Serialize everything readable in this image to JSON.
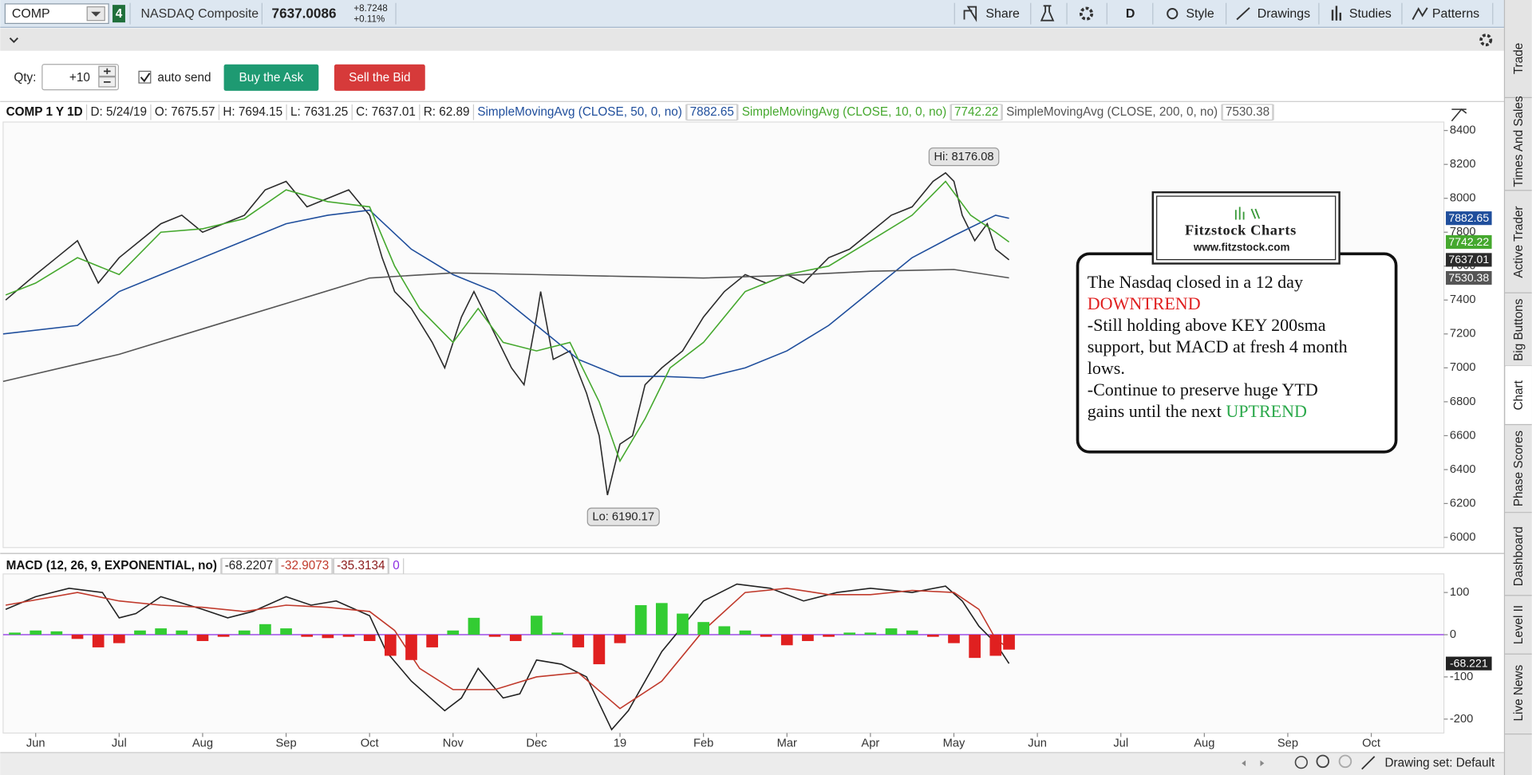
{
  "toolbar": {
    "symbol": "COMP",
    "link_group": "4",
    "description": "NASDAQ Composite",
    "price": "7637.0086",
    "change": "+8.7248",
    "change_pct": "+0.11%",
    "buttons": [
      "Share",
      "D",
      "Style",
      "Drawings",
      "Studies",
      "Patterns"
    ]
  },
  "order_bar": {
    "qty_label": "Qty:",
    "qty": "+10",
    "auto_send": "auto send",
    "buy": "Buy the Ask",
    "sell": "Sell the Bid"
  },
  "side_tabs": [
    "Trade",
    "Times And Sales",
    "Active Trader",
    "Big Buttons",
    "Chart",
    "Phase Scores",
    "Dashboard",
    "Level II",
    "Live News"
  ],
  "selected_tab": "Chart",
  "chart_data": [
    {
      "type": "line",
      "title": "COMP 1 Y 1D",
      "ohlc": [
        "D: 5/24/19",
        "O: 7675.57",
        "H: 7694.15",
        "L: 7631.25",
        "C: 7637.01",
        "R: 62.89"
      ],
      "xlim": [
        -0.39,
        16.87
      ],
      "ylim": [
        5940,
        8450
      ],
      "yticks": [
        6000,
        6200,
        6400,
        6600,
        6800,
        7000,
        7200,
        7400,
        7600,
        7800,
        8000,
        8200,
        8400
      ],
      "grid": false,
      "series": [
        {
          "color": "#2b2b2b",
          "x": [
            -0.36,
            0,
            0.25,
            0.5,
            0.75,
            1.0,
            1.25,
            1.5,
            1.75,
            2.0,
            2.25,
            2.5,
            2.75,
            3.0,
            3.25,
            3.5,
            3.75,
            4.0,
            4.15,
            4.3,
            4.5,
            4.75,
            4.9,
            5.1,
            5.25,
            5.5,
            5.7,
            5.85,
            6.0,
            6.05,
            6.2,
            6.4,
            6.6,
            6.75,
            6.85,
            7.0,
            7.15,
            7.3,
            7.5,
            7.75,
            8.0,
            8.25,
            8.5,
            8.75,
            9.0,
            9.2,
            9.5,
            9.75,
            10.0,
            10.25,
            10.5,
            10.75,
            10.9,
            11.0,
            11.1,
            11.25,
            11.4,
            11.5,
            11.66
          ],
          "values": [
            7400,
            7550,
            7650,
            7750,
            7500,
            7650,
            7750,
            7850,
            7900,
            7800,
            7850,
            7900,
            8050,
            8100,
            7950,
            8000,
            8050,
            7900,
            7650,
            7450,
            7350,
            7150,
            7000,
            7300,
            7450,
            7200,
            7000,
            6900,
            7300,
            7450,
            7050,
            7100,
            6850,
            6600,
            6250,
            6550,
            6600,
            6900,
            7000,
            7100,
            7300,
            7450,
            7550,
            7500,
            7550,
            7500,
            7650,
            7700,
            7800,
            7900,
            7950,
            8100,
            8150,
            8100,
            7900,
            7750,
            7850,
            7700,
            7637.01
          ]
        },
        {
          "name": "SimpleMovingAvg (CLOSE, 50, 0, no)",
          "color": "#1f4e9c",
          "x": [
            -0.39,
            0.5,
            1,
            1.5,
            2,
            2.5,
            3,
            3.5,
            4,
            4.5,
            5,
            5.5,
            6,
            6.5,
            7,
            7.5,
            8,
            8.5,
            9,
            9.5,
            10,
            10.5,
            11,
            11.5,
            11.66
          ],
          "values": [
            7200,
            7250,
            7450,
            7550,
            7650,
            7750,
            7850,
            7900,
            7930,
            7700,
            7550,
            7450,
            7250,
            7050,
            6950,
            6950,
            6940,
            7000,
            7100,
            7250,
            7450,
            7650,
            7780,
            7900,
            7882.65
          ]
        },
        {
          "name": "SimpleMovingAvg (CLOSE, 10, 0, no)",
          "color": "#45a82e",
          "x": [
            -0.36,
            0,
            0.5,
            1,
            1.5,
            2,
            2.5,
            3,
            3.5,
            4,
            4.3,
            4.6,
            5,
            5.3,
            5.6,
            6,
            6.4,
            6.75,
            7,
            7.3,
            7.6,
            8,
            8.5,
            9,
            9.5,
            10,
            10.5,
            10.9,
            11.2,
            11.5,
            11.66
          ],
          "values": [
            7430,
            7500,
            7650,
            7550,
            7800,
            7820,
            7880,
            8050,
            7980,
            7950,
            7600,
            7350,
            7150,
            7350,
            7150,
            7100,
            7150,
            6800,
            6450,
            6700,
            7000,
            7150,
            7450,
            7550,
            7600,
            7750,
            7900,
            8100,
            7900,
            7800,
            7742.22
          ]
        },
        {
          "name": "SimpleMovingAvg (CLOSE, 200, 0, no)",
          "color": "#555555",
          "x": [
            -0.39,
            1,
            2,
            3,
            4,
            5,
            6,
            7,
            8,
            9,
            10,
            11,
            11.66
          ],
          "values": [
            6920,
            7080,
            7230,
            7380,
            7530,
            7560,
            7550,
            7540,
            7530,
            7545,
            7570,
            7580,
            7530.38
          ]
        }
      ],
      "annotations": [
        {
          "text": "Hi: 8176.08",
          "x": 11.12,
          "y": 8176.08,
          "position": "above"
        },
        {
          "text": "Lo: 6190.17",
          "x": 7.04,
          "y": 6190.17,
          "position": "below"
        }
      ]
    },
    {
      "type": "line",
      "title": "MACD (12, 26, 9, EXPONENTIAL, no)",
      "xlim": [
        -0.39,
        16.87
      ],
      "ylim": [
        -233,
        144
      ],
      "yticks": [
        -200,
        -100,
        0,
        100
      ],
      "xticks": [
        {
          "value": 0,
          "label": "Jun"
        },
        {
          "value": 1,
          "label": "Jul"
        },
        {
          "value": 2,
          "label": "Aug"
        },
        {
          "value": 3,
          "label": "Sep"
        },
        {
          "value": 4,
          "label": "Oct"
        },
        {
          "value": 5,
          "label": "Nov"
        },
        {
          "value": 6,
          "label": "Dec"
        },
        {
          "value": 7,
          "label": "19"
        },
        {
          "value": 8,
          "label": "Feb"
        },
        {
          "value": 9,
          "label": "Mar"
        },
        {
          "value": 10,
          "label": "Apr"
        },
        {
          "value": 11,
          "label": "May"
        },
        {
          "value": 12,
          "label": "Jun"
        },
        {
          "value": 13,
          "label": "Jul"
        },
        {
          "value": 14,
          "label": "Aug"
        },
        {
          "value": 15,
          "label": "Sep"
        },
        {
          "value": 16,
          "label": "Oct"
        }
      ],
      "zero_value": 0,
      "zero_color": "#8a2be2",
      "series": [
        {
          "color": "#222222",
          "last_label": "-68.221",
          "x": [
            -0.36,
            0,
            0.4,
            0.8,
            1.0,
            1.2,
            1.5,
            2.0,
            2.3,
            2.6,
            3.0,
            3.3,
            3.6,
            4.0,
            4.2,
            4.5,
            4.9,
            5.1,
            5.3,
            5.6,
            5.8,
            6.0,
            6.3,
            6.6,
            6.9,
            7.1,
            7.5,
            8.0,
            8.4,
            8.8,
            9.2,
            9.6,
            10.0,
            10.5,
            10.9,
            11.1,
            11.3,
            11.5,
            11.66
          ],
          "values": [
            60,
            90,
            110,
            100,
            40,
            50,
            90,
            60,
            40,
            55,
            90,
            70,
            80,
            45,
            -40,
            -110,
            -180,
            -150,
            -80,
            -150,
            -140,
            -60,
            -70,
            -100,
            -225,
            -180,
            -40,
            80,
            120,
            110,
            80,
            100,
            110,
            100,
            115,
            80,
            20,
            -20,
            -68.2207
          ]
        },
        {
          "color": "#c0392b",
          "x": [
            -0.36,
            0.5,
            1.0,
            1.5,
            2.0,
            2.5,
            3.0,
            3.5,
            4.0,
            4.3,
            4.6,
            5.0,
            5.5,
            6.0,
            6.5,
            7.0,
            7.5,
            8.0,
            8.5,
            9.0,
            9.5,
            10.0,
            10.5,
            11.0,
            11.3,
            11.5,
            11.66
          ],
          "values": [
            70,
            100,
            80,
            70,
            65,
            55,
            70,
            65,
            55,
            10,
            -80,
            -130,
            -130,
            -100,
            -90,
            -175,
            -110,
            10,
            100,
            110,
            95,
            95,
            105,
            100,
            60,
            -10,
            -32.9073
          ]
        },
        {
          "type": "bar",
          "color": "#8b1a1a",
          "color_up": "#33cc33",
          "color_down": "#e02020",
          "x": [
            -0.25,
            0,
            0.25,
            0.5,
            0.75,
            1,
            1.25,
            1.5,
            1.75,
            2,
            2.25,
            2.5,
            2.75,
            3,
            3.25,
            3.5,
            3.75,
            4,
            4.25,
            4.5,
            4.75,
            5,
            5.25,
            5.5,
            5.75,
            6,
            6.25,
            6.5,
            6.75,
            7,
            7.25,
            7.5,
            7.75,
            8,
            8.25,
            8.5,
            8.75,
            9,
            9.25,
            9.5,
            9.75,
            10,
            10.25,
            10.5,
            10.75,
            11,
            11.25,
            11.5,
            11.66
          ],
          "values": [
            5,
            10,
            8,
            -10,
            -30,
            -20,
            10,
            15,
            10,
            -15,
            -5,
            10,
            25,
            15,
            -5,
            -8,
            -5,
            -15,
            -50,
            -60,
            -30,
            10,
            40,
            -5,
            -15,
            45,
            5,
            -30,
            -70,
            -20,
            70,
            75,
            50,
            30,
            20,
            10,
            -5,
            -25,
            -15,
            -5,
            5,
            5,
            15,
            10,
            -5,
            -20,
            -55,
            -50,
            -35.3134
          ]
        }
      ]
    }
  ],
  "annotation": {
    "logo": "Fitzstock Charts",
    "url": "www.fitzstock.com",
    "lines": [
      [
        {
          "text": "The Nasdaq closed in a 12 day",
          "color": "#111111"
        }
      ],
      [
        {
          "text": "DOWNTREND",
          "color": "#e02020"
        }
      ],
      [
        {
          "text": "-Still holding above KEY 200sma",
          "color": "#111111"
        }
      ],
      [
        {
          "text": "support, but MACD at fresh 4 month",
          "color": "#111111"
        }
      ],
      [
        {
          "text": "lows.",
          "color": "#111111"
        }
      ],
      [
        {
          "text": "-Continue to preserve huge YTD",
          "color": "#111111"
        }
      ],
      [
        {
          "text": "gains until the next ",
          "color": "#111111"
        },
        {
          "text": "UPTREND",
          "color": "#2aa84a"
        }
      ]
    ]
  },
  "footer": {
    "drawing_set": "Drawing set: Default"
  }
}
